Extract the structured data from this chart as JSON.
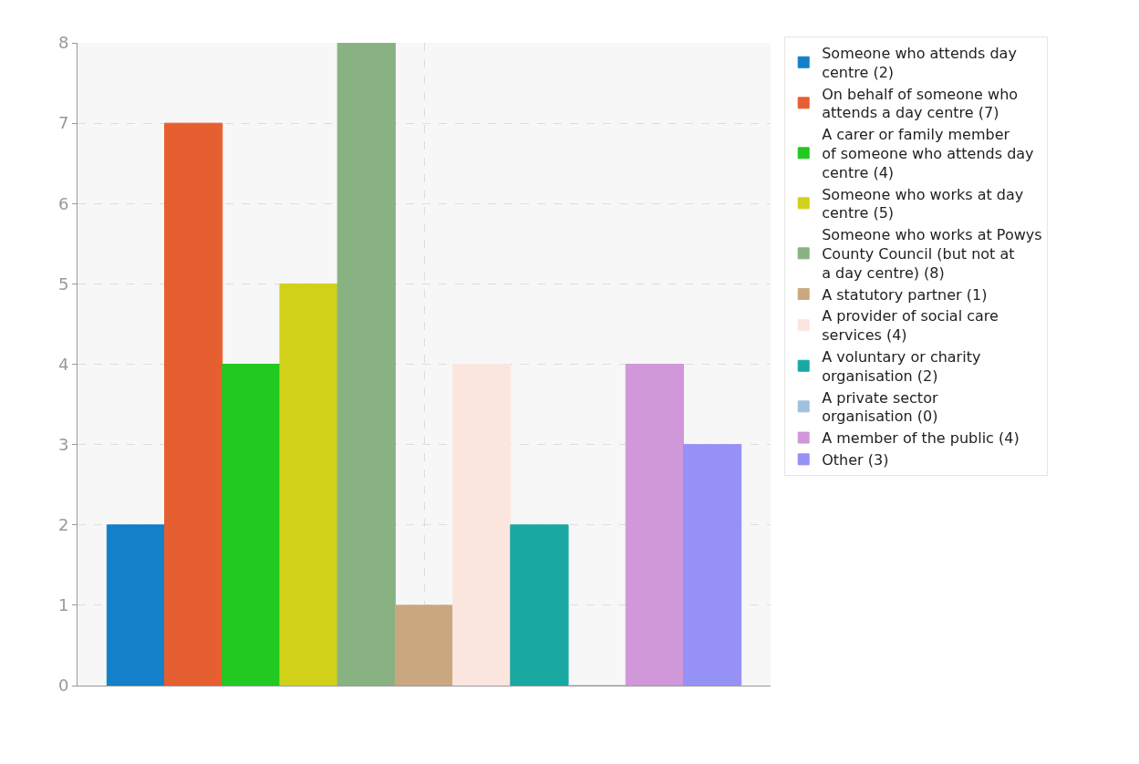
{
  "chart_data": {
    "type": "bar",
    "categories": [
      null
    ],
    "series": [
      {
        "name": "Someone who attends day centre (2)",
        "color": "#1380c9",
        "values": [
          2
        ]
      },
      {
        "name": "On behalf of someone who attends a day centre (7)",
        "color": "#e65f30",
        "values": [
          7
        ]
      },
      {
        "name": "A carer or family member of someone who attends day centre (4)",
        "color": "#21c921",
        "values": [
          4
        ]
      },
      {
        "name": "Someone who works at day centre (5)",
        "color": "#d1d11a",
        "values": [
          5
        ]
      },
      {
        "name": "Someone who works at Powys County Council (but not at a day centre) (8)",
        "color": "#88b282",
        "values": [
          8
        ]
      },
      {
        "name": "A statutory partner (1)",
        "color": "#c9a880",
        "values": [
          1
        ]
      },
      {
        "name": "A provider of social care services (4)",
        "color": "#fbe6df",
        "values": [
          4
        ]
      },
      {
        "name": "A voluntary or charity organisation (2)",
        "color": "#1aa8a3",
        "values": [
          2
        ]
      },
      {
        "name": "A private sector organisation (0)",
        "color": "#a0c0e0",
        "values": [
          0
        ]
      },
      {
        "name": "A member of the public (4)",
        "color": "#d098d8",
        "values": [
          4
        ]
      },
      {
        "name": "Other (3)",
        "color": "#9591f5",
        "values": [
          3
        ]
      }
    ],
    "ylim": [
      0,
      8
    ],
    "yticks": [
      0,
      1,
      2,
      3,
      4,
      5,
      6,
      7,
      8
    ],
    "grid": true,
    "legend": "top right"
  }
}
